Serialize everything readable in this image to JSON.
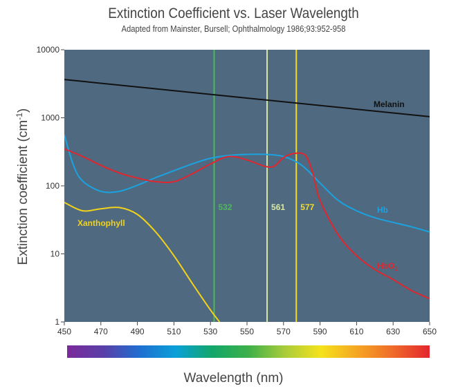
{
  "chart_data": {
    "type": "line",
    "title": "Extinction Coefficient vs. Laser Wavelength",
    "subtitle": "Adapted from Mainster, Bursell; Ophthalmology 1986;93:952-958",
    "xlabel": "Wavelength (nm)",
    "ylabel": "Extinction coefficient (cm",
    "ylabel_sup": "-1",
    "ylabel_close": ")",
    "xlim": [
      450,
      650
    ],
    "ylim": [
      1,
      10000
    ],
    "yscale": "log",
    "grid": false,
    "background": "#4f6a80",
    "x_ticks": [
      "450",
      "470",
      "490",
      "510",
      "530",
      "550",
      "570",
      "590",
      "610",
      "630",
      "650"
    ],
    "y_ticks": [
      "1",
      "10",
      "100",
      "1000",
      "10000"
    ],
    "series": [
      {
        "name": "Melanin",
        "color": "#111111",
        "x": [
          450,
          650
        ],
        "y": [
          3650,
          1040
        ]
      },
      {
        "name": "Hb",
        "color": "#1aa3e0",
        "x": [
          450,
          455,
          460,
          470,
          480,
          490,
          500,
          510,
          520,
          530,
          540,
          550,
          560,
          570,
          580,
          590,
          600,
          610,
          620,
          630,
          640,
          650
        ],
        "y": [
          560,
          200,
          118,
          83,
          83,
          102,
          132,
          167,
          210,
          254,
          280,
          290,
          290,
          270,
          200,
          110,
          61,
          43,
          34,
          29,
          25,
          21
        ]
      },
      {
        "name": "HbO2",
        "label_main": "HbO",
        "label_sub": "2",
        "color": "#e0262e",
        "x": [
          450,
          460,
          470,
          480,
          490,
          500,
          510,
          520,
          530,
          540,
          550,
          560,
          565,
          570,
          576,
          582,
          586,
          590,
          600,
          610,
          620,
          630,
          640,
          650
        ],
        "y": [
          350,
          270,
          200,
          155,
          130,
          115,
          115,
          150,
          210,
          270,
          240,
          193,
          195,
          260,
          300,
          280,
          155,
          61,
          19,
          9.4,
          5.9,
          4.2,
          2.9,
          2.2
        ]
      },
      {
        "name": "Xanthophyll",
        "color": "#f2d21a",
        "x": [
          450,
          460,
          470,
          480,
          490,
          500,
          510,
          520,
          530,
          535
        ],
        "y": [
          57,
          43,
          46,
          48,
          38,
          21,
          9.4,
          3.7,
          1.5,
          1
        ]
      }
    ],
    "lasers": [
      {
        "wavelength": 532,
        "label": "532",
        "color": "#4fb85a"
      },
      {
        "wavelength": 561,
        "label": "561",
        "color": "#d9e8a0"
      },
      {
        "wavelength": 577,
        "label": "577",
        "color": "#f5dc2a"
      }
    ],
    "spectrum_bar": true
  }
}
